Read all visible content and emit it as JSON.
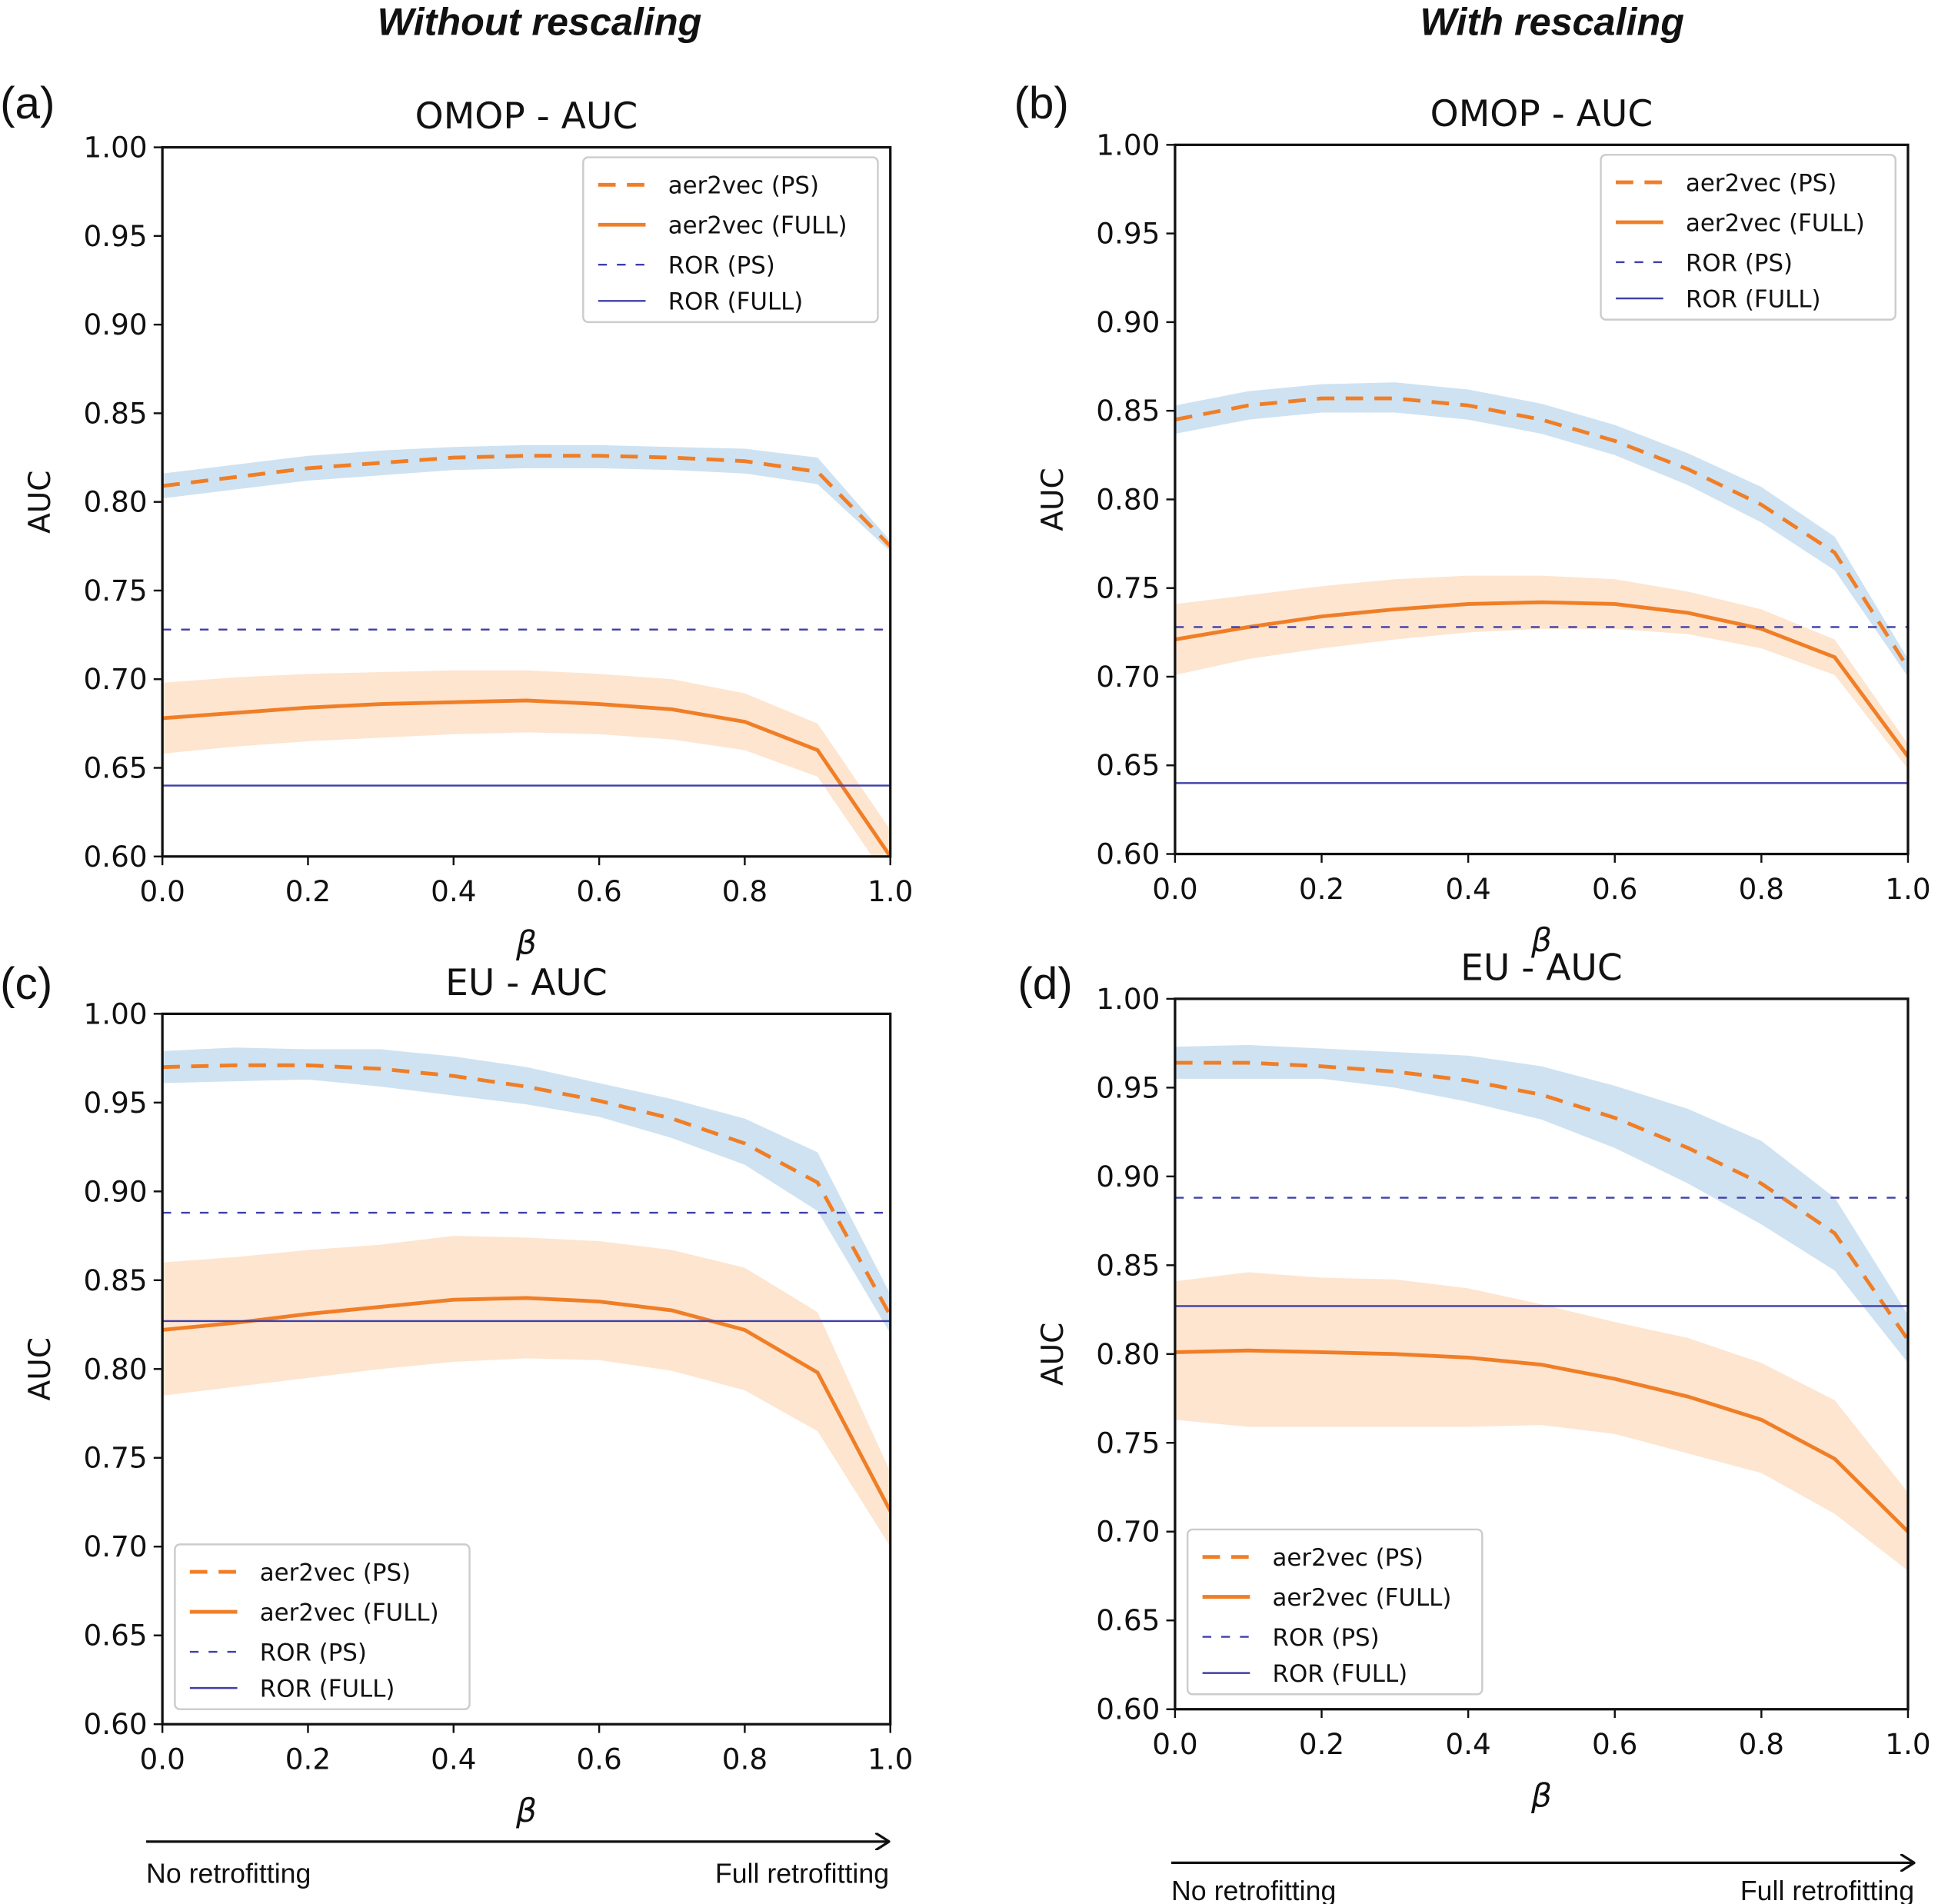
{
  "headers": [
    "Without rescaling",
    "With rescaling"
  ],
  "arrows": [
    {
      "start": "No retrofitting",
      "end": "Full retrofitting"
    },
    {
      "start": "No retrofitting",
      "end": "Full retrofitting"
    }
  ],
  "chart_data": [
    {
      "type": "line",
      "panel": "(a)",
      "title": "OMOP - AUC",
      "xlabel": "β",
      "ylabel": "AUC",
      "x": [
        0,
        0.1,
        0.2,
        0.3,
        0.4,
        0.5,
        0.6,
        0.7,
        0.8,
        0.9,
        1.0
      ],
      "xlim": [
        0,
        1
      ],
      "ylim": [
        0.6,
        1.0
      ],
      "xticks": [
        {
          "value": 0,
          "label": "0.0"
        },
        0.2,
        0.4,
        0.6,
        0.8,
        {
          "value": 1,
          "label": "1.0"
        }
      ],
      "yticks": [
        {
          "value": 0.6,
          "label": "0.60"
        },
        0.65,
        {
          "value": 0.7,
          "label": "0.70"
        },
        0.75,
        {
          "value": 0.8,
          "label": "0.80"
        },
        0.85,
        {
          "value": 0.9,
          "label": "0.90"
        },
        0.95,
        {
          "value": 1.0,
          "label": "1.00"
        }
      ],
      "legend": "upper right",
      "series": [
        {
          "name": "aer2vec (PS)",
          "color": "#f07e26",
          "linestyle": "dashed",
          "linewidth": 3,
          "values": [
            0.809,
            0.814,
            0.819,
            0.822,
            0.825,
            0.826,
            0.826,
            0.825,
            0.823,
            0.817,
            0.775
          ],
          "band_color": "#c6ddf0",
          "band_lower": [
            0.802,
            0.807,
            0.812,
            0.815,
            0.818,
            0.819,
            0.819,
            0.818,
            0.816,
            0.81,
            0.772
          ],
          "band_upper": [
            0.816,
            0.821,
            0.826,
            0.829,
            0.831,
            0.832,
            0.832,
            0.831,
            0.83,
            0.825,
            0.778
          ]
        },
        {
          "name": "aer2vec (FULL)",
          "color": "#f07e26",
          "linestyle": "solid",
          "linewidth": 3,
          "values": [
            0.678,
            0.681,
            0.684,
            0.686,
            0.687,
            0.688,
            0.686,
            0.683,
            0.676,
            0.66,
            0.6
          ],
          "band_color": "#fde0c8",
          "band_lower": [
            0.658,
            0.662,
            0.665,
            0.667,
            0.669,
            0.67,
            0.669,
            0.666,
            0.66,
            0.645,
            0.585
          ],
          "band_upper": [
            0.698,
            0.701,
            0.703,
            0.704,
            0.705,
            0.705,
            0.703,
            0.7,
            0.692,
            0.675,
            0.615
          ]
        },
        {
          "name": "ROR (PS)",
          "color": "#3f3fa8",
          "linestyle": "dashed",
          "linewidth": 1.5,
          "values": [
            0.728,
            0.728,
            0.728,
            0.728,
            0.728,
            0.728,
            0.728,
            0.728,
            0.728,
            0.728,
            0.728
          ]
        },
        {
          "name": "ROR (FULL)",
          "color": "#3f3fa8",
          "linestyle": "solid",
          "linewidth": 1.5,
          "values": [
            0.64,
            0.64,
            0.64,
            0.64,
            0.64,
            0.64,
            0.64,
            0.64,
            0.64,
            0.64,
            0.64
          ]
        }
      ]
    },
    {
      "type": "line",
      "panel": "(b)",
      "title": "OMOP - AUC",
      "xlabel": "β",
      "ylabel": "AUC",
      "x": [
        0,
        0.1,
        0.2,
        0.3,
        0.4,
        0.5,
        0.6,
        0.7,
        0.8,
        0.9,
        1.0
      ],
      "xlim": [
        0,
        1
      ],
      "ylim": [
        0.6,
        1.0
      ],
      "xticks": [
        {
          "value": 0,
          "label": "0.0"
        },
        0.2,
        0.4,
        0.6,
        0.8,
        {
          "value": 1,
          "label": "1.0"
        }
      ],
      "yticks": [
        {
          "value": 0.6,
          "label": "0.60"
        },
        0.65,
        {
          "value": 0.7,
          "label": "0.70"
        },
        0.75,
        {
          "value": 0.8,
          "label": "0.80"
        },
        0.85,
        {
          "value": 0.9,
          "label": "0.90"
        },
        0.95,
        {
          "value": 1.0,
          "label": "1.00"
        }
      ],
      "legend": "upper right",
      "series": [
        {
          "name": "aer2vec (PS)",
          "color": "#f07e26",
          "linestyle": "dashed",
          "linewidth": 3,
          "values": [
            0.845,
            0.853,
            0.857,
            0.857,
            0.853,
            0.845,
            0.833,
            0.817,
            0.797,
            0.77,
            0.705
          ],
          "band_color": "#c6ddf0",
          "band_lower": [
            0.837,
            0.845,
            0.849,
            0.849,
            0.845,
            0.837,
            0.825,
            0.808,
            0.787,
            0.76,
            0.7
          ],
          "band_upper": [
            0.853,
            0.861,
            0.865,
            0.866,
            0.862,
            0.854,
            0.842,
            0.826,
            0.807,
            0.779,
            0.71
          ]
        },
        {
          "name": "aer2vec (FULL)",
          "color": "#f07e26",
          "linestyle": "solid",
          "linewidth": 3,
          "values": [
            0.721,
            0.728,
            0.734,
            0.738,
            0.741,
            0.742,
            0.741,
            0.736,
            0.727,
            0.711,
            0.655
          ],
          "band_color": "#fde0c8",
          "band_lower": [
            0.701,
            0.71,
            0.716,
            0.721,
            0.725,
            0.727,
            0.727,
            0.724,
            0.716,
            0.701,
            0.648
          ],
          "band_upper": [
            0.741,
            0.746,
            0.751,
            0.755,
            0.757,
            0.757,
            0.755,
            0.748,
            0.738,
            0.721,
            0.662
          ]
        },
        {
          "name": "ROR (PS)",
          "color": "#3f3fa8",
          "linestyle": "dashed",
          "linewidth": 1.5,
          "values": [
            0.728,
            0.728,
            0.728,
            0.728,
            0.728,
            0.728,
            0.728,
            0.728,
            0.728,
            0.728,
            0.728
          ]
        },
        {
          "name": "ROR (FULL)",
          "color": "#3f3fa8",
          "linestyle": "solid",
          "linewidth": 1.5,
          "values": [
            0.64,
            0.64,
            0.64,
            0.64,
            0.64,
            0.64,
            0.64,
            0.64,
            0.64,
            0.64,
            0.64
          ]
        }
      ]
    },
    {
      "type": "line",
      "panel": "(c)",
      "title": "EU - AUC",
      "xlabel": "β",
      "ylabel": "AUC",
      "x": [
        0,
        0.1,
        0.2,
        0.3,
        0.4,
        0.5,
        0.6,
        0.7,
        0.8,
        0.9,
        1.0
      ],
      "xlim": [
        0,
        1
      ],
      "ylim": [
        0.6,
        1.0
      ],
      "xticks": [
        {
          "value": 0,
          "label": "0.0"
        },
        0.2,
        0.4,
        0.6,
        0.8,
        {
          "value": 1,
          "label": "1.0"
        }
      ],
      "yticks": [
        {
          "value": 0.6,
          "label": "0.60"
        },
        0.65,
        {
          "value": 0.7,
          "label": "0.70"
        },
        0.75,
        {
          "value": 0.8,
          "label": "0.80"
        },
        0.85,
        {
          "value": 0.9,
          "label": "0.90"
        },
        0.95,
        {
          "value": 1.0,
          "label": "1.00"
        }
      ],
      "legend": "lower left",
      "series": [
        {
          "name": "aer2vec (PS)",
          "color": "#f07e26",
          "linestyle": "dashed",
          "linewidth": 3,
          "values": [
            0.97,
            0.971,
            0.971,
            0.969,
            0.965,
            0.959,
            0.951,
            0.941,
            0.927,
            0.905,
            0.83
          ],
          "band_color": "#c6ddf0",
          "band_lower": [
            0.961,
            0.962,
            0.963,
            0.959,
            0.954,
            0.949,
            0.942,
            0.93,
            0.915,
            0.889,
            0.82
          ],
          "band_upper": [
            0.979,
            0.981,
            0.98,
            0.98,
            0.976,
            0.97,
            0.961,
            0.952,
            0.941,
            0.922,
            0.842
          ]
        },
        {
          "name": "aer2vec (FULL)",
          "color": "#f07e26",
          "linestyle": "solid",
          "linewidth": 3,
          "values": [
            0.822,
            0.826,
            0.831,
            0.835,
            0.839,
            0.84,
            0.838,
            0.833,
            0.822,
            0.798,
            0.72
          ],
          "band_color": "#fde0c8",
          "band_lower": [
            0.785,
            0.79,
            0.795,
            0.8,
            0.804,
            0.806,
            0.805,
            0.799,
            0.788,
            0.765,
            0.7
          ],
          "band_upper": [
            0.86,
            0.863,
            0.867,
            0.87,
            0.875,
            0.874,
            0.872,
            0.867,
            0.857,
            0.832,
            0.742
          ]
        },
        {
          "name": "ROR (PS)",
          "color": "#3f3fa8",
          "linestyle": "dashed",
          "linewidth": 1.5,
          "values": [
            0.888,
            0.888,
            0.888,
            0.888,
            0.888,
            0.888,
            0.888,
            0.888,
            0.888,
            0.888,
            0.888
          ]
        },
        {
          "name": "ROR (FULL)",
          "color": "#3f3fa8",
          "linestyle": "solid",
          "linewidth": 1.5,
          "values": [
            0.827,
            0.827,
            0.827,
            0.827,
            0.827,
            0.827,
            0.827,
            0.827,
            0.827,
            0.827,
            0.827
          ]
        }
      ]
    },
    {
      "type": "line",
      "panel": "(d)",
      "title": "EU - AUC",
      "xlabel": "β",
      "ylabel": "AUC",
      "x": [
        0,
        0.1,
        0.2,
        0.3,
        0.4,
        0.5,
        0.6,
        0.7,
        0.8,
        0.9,
        1.0
      ],
      "xlim": [
        0,
        1
      ],
      "ylim": [
        0.6,
        1.0
      ],
      "xticks": [
        {
          "value": 0,
          "label": "0.0"
        },
        0.2,
        0.4,
        0.6,
        0.8,
        {
          "value": 1,
          "label": "1.0"
        }
      ],
      "yticks": [
        {
          "value": 0.6,
          "label": "0.60"
        },
        0.65,
        {
          "value": 0.7,
          "label": "0.70"
        },
        0.75,
        {
          "value": 0.8,
          "label": "0.80"
        },
        0.85,
        {
          "value": 0.9,
          "label": "0.90"
        },
        0.95,
        {
          "value": 1.0,
          "label": "1.00"
        }
      ],
      "legend": "lower left",
      "series": [
        {
          "name": "aer2vec (PS)",
          "color": "#f07e26",
          "linestyle": "dashed",
          "linewidth": 3,
          "values": [
            0.964,
            0.964,
            0.962,
            0.959,
            0.954,
            0.946,
            0.933,
            0.916,
            0.896,
            0.868,
            0.808
          ],
          "band_color": "#c6ddf0",
          "band_lower": [
            0.955,
            0.955,
            0.955,
            0.95,
            0.942,
            0.932,
            0.916,
            0.896,
            0.873,
            0.847,
            0.795
          ],
          "band_upper": [
            0.973,
            0.974,
            0.972,
            0.97,
            0.968,
            0.962,
            0.951,
            0.938,
            0.92,
            0.888,
            0.822
          ]
        },
        {
          "name": "aer2vec (FULL)",
          "color": "#f07e26",
          "linestyle": "solid",
          "linewidth": 3,
          "values": [
            0.801,
            0.802,
            0.801,
            0.8,
            0.798,
            0.794,
            0.786,
            0.776,
            0.763,
            0.741,
            0.7
          ],
          "band_color": "#fde0c8",
          "band_lower": [
            0.763,
            0.759,
            0.759,
            0.759,
            0.759,
            0.76,
            0.755,
            0.744,
            0.733,
            0.71,
            0.678
          ],
          "band_upper": [
            0.841,
            0.846,
            0.843,
            0.842,
            0.837,
            0.828,
            0.818,
            0.809,
            0.795,
            0.774,
            0.722
          ]
        },
        {
          "name": "ROR (PS)",
          "color": "#3f3fa8",
          "linestyle": "dashed",
          "linewidth": 1.5,
          "values": [
            0.888,
            0.888,
            0.888,
            0.888,
            0.888,
            0.888,
            0.888,
            0.888,
            0.888,
            0.888,
            0.888
          ]
        },
        {
          "name": "ROR (FULL)",
          "color": "#3f3fa8",
          "linestyle": "solid",
          "linewidth": 1.5,
          "values": [
            0.827,
            0.827,
            0.827,
            0.827,
            0.827,
            0.827,
            0.827,
            0.827,
            0.827,
            0.827,
            0.827
          ]
        }
      ]
    }
  ]
}
